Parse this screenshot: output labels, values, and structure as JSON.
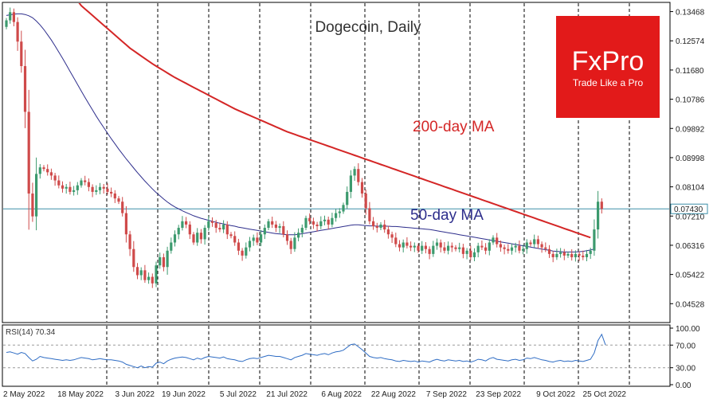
{
  "chart_data": [
    {
      "type": "candlestick",
      "title": "Dogecoin, Daily",
      "price_scale": {
        "ticks": [
          "0.13468",
          "0.12574",
          "0.11680",
          "0.10786",
          "0.09892",
          "0.08998",
          "0.08104",
          "0.07210",
          "0.06316",
          "0.05422",
          "0.04528"
        ],
        "current_price_label": "0.07430",
        "ylim": [
          0.0395,
          0.1375
        ]
      },
      "dates": [
        "2 May 2022",
        "18 May 2022",
        "3 Jun 2022",
        "19 Jun 2022",
        "5 Jul 2022",
        "21 Jul 2022",
        "6 Aug 2022",
        "22 Aug 2022",
        "7 Sep 2022",
        "23 Sep 2022",
        "9 Oct 2022",
        "25 Oct 2022"
      ],
      "close": [
        0.132,
        0.1345,
        0.1315,
        0.1255,
        0.118,
        0.104,
        0.079,
        0.072,
        0.085,
        0.087,
        0.0865,
        0.0855,
        0.0845,
        0.083,
        0.0815,
        0.0805,
        0.081,
        0.0795,
        0.08,
        0.0815,
        0.083,
        0.0825,
        0.081,
        0.0795,
        0.08,
        0.081,
        0.0805,
        0.0795,
        0.079,
        0.0775,
        0.0765,
        0.073,
        0.0665,
        0.062,
        0.0565,
        0.054,
        0.0555,
        0.0525,
        0.0535,
        0.0515,
        0.057,
        0.0595,
        0.0565,
        0.0615,
        0.064,
        0.0665,
        0.0685,
        0.0705,
        0.0695,
        0.0665,
        0.064,
        0.067,
        0.065,
        0.0685,
        0.0705,
        0.07,
        0.0685,
        0.068,
        0.0695,
        0.0665,
        0.066,
        0.064,
        0.0615,
        0.06,
        0.0625,
        0.0645,
        0.0655,
        0.064,
        0.0665,
        0.0685,
        0.0705,
        0.0695,
        0.0685,
        0.069,
        0.0665,
        0.0645,
        0.062,
        0.0655,
        0.067,
        0.0685,
        0.0715,
        0.0705,
        0.0695,
        0.069,
        0.0705,
        0.071,
        0.0695,
        0.0715,
        0.073,
        0.0735,
        0.0755,
        0.0795,
        0.0845,
        0.0865,
        0.0825,
        0.079,
        0.0745,
        0.0705,
        0.069,
        0.0685,
        0.0695,
        0.068,
        0.0665,
        0.0655,
        0.0635,
        0.0625,
        0.064,
        0.063,
        0.0625,
        0.063,
        0.0615,
        0.063,
        0.062,
        0.0605,
        0.063,
        0.064,
        0.0625,
        0.0615,
        0.063,
        0.0625,
        0.062,
        0.0625,
        0.0605,
        0.0615,
        0.0595,
        0.061,
        0.063,
        0.0625,
        0.0615,
        0.064,
        0.0655,
        0.0635,
        0.0625,
        0.062,
        0.0615,
        0.0625,
        0.063,
        0.0615,
        0.062,
        0.064,
        0.0635,
        0.065,
        0.0635,
        0.0625,
        0.062,
        0.0605,
        0.0595,
        0.0605,
        0.061,
        0.06,
        0.0605,
        0.0595,
        0.0605,
        0.06,
        0.0595,
        0.0605,
        0.0615,
        0.068,
        0.0765,
        0.0743
      ],
      "ma200": [
        0.168,
        0.166,
        0.164,
        0.162,
        0.16,
        0.158,
        0.156,
        0.154,
        0.1525,
        0.151,
        0.1495,
        0.148,
        0.1465,
        0.145,
        0.144,
        0.143,
        0.1415,
        0.14,
        0.139,
        0.138,
        0.1365,
        0.1355,
        0.1345,
        0.1335,
        0.1325,
        0.1315,
        0.1305,
        0.1295,
        0.1285,
        0.1275,
        0.1265,
        0.1255,
        0.1245,
        0.1235,
        0.1227,
        0.1219,
        0.1211,
        0.1203,
        0.1195,
        0.1187,
        0.118,
        0.1173,
        0.1166,
        0.1159,
        0.1152,
        0.1145,
        0.1139,
        0.1133,
        0.1127,
        0.1121,
        0.1115,
        0.1109,
        0.1103,
        0.1097,
        0.1091,
        0.1085,
        0.1079,
        0.1073,
        0.1067,
        0.1061,
        0.1055,
        0.1049,
        0.1044,
        0.1039,
        0.1034,
        0.1029,
        0.1024,
        0.1019,
        0.1014,
        0.1009,
        0.1004,
        0.0999,
        0.0994,
        0.0989,
        0.0984,
        0.0979,
        0.0975,
        0.0971,
        0.0967,
        0.0963,
        0.0959,
        0.0955,
        0.0951,
        0.0947,
        0.0943,
        0.0939,
        0.0935,
        0.0931,
        0.0927,
        0.0923,
        0.0919,
        0.0915,
        0.0911,
        0.0907,
        0.0903,
        0.0899,
        0.0895,
        0.0891,
        0.0887,
        0.0883,
        0.0879,
        0.0875,
        0.0871,
        0.0867,
        0.0863,
        0.0859,
        0.0855,
        0.0851,
        0.0847,
        0.0843,
        0.0839,
        0.0835,
        0.0831,
        0.0827,
        0.0823,
        0.0819,
        0.0815,
        0.0811,
        0.0807,
        0.0803,
        0.0799,
        0.0795,
        0.0791,
        0.0787,
        0.0783,
        0.0779,
        0.0775,
        0.0771,
        0.0767,
        0.0763,
        0.0759,
        0.0755,
        0.0751,
        0.0747,
        0.0743,
        0.0739,
        0.0735,
        0.0731,
        0.0727,
        0.0723,
        0.0719,
        0.0715,
        0.0711,
        0.0707,
        0.0703,
        0.0699,
        0.0695,
        0.0691,
        0.0687,
        0.0683,
        0.0679,
        0.0675,
        0.0671,
        0.0667,
        0.0663,
        0.0659,
        0.0655
      ],
      "ma50": [
        0.1335,
        0.1337,
        0.1339,
        0.134,
        0.134,
        0.1338,
        0.1334,
        0.1328,
        0.1318,
        0.1306,
        0.1292,
        0.1276,
        0.126,
        0.1242,
        0.1223,
        0.1204,
        0.1184,
        0.1164,
        0.1144,
        0.1124,
        0.1104,
        0.1084,
        0.1065,
        0.1046,
        0.1027,
        0.1009,
        0.0992,
        0.0975,
        0.0958,
        0.0942,
        0.0926,
        0.0911,
        0.0896,
        0.0882,
        0.0868,
        0.0854,
        0.0841,
        0.0828,
        0.0816,
        0.0804,
        0.0793,
        0.0783,
        0.0773,
        0.0764,
        0.0756,
        0.0749,
        0.0743,
        0.0737,
        0.0732,
        0.0727,
        0.0722,
        0.0718,
        0.0714,
        0.0711,
        0.0708,
        0.0705,
        0.0702,
        0.0699,
        0.0697,
        0.0694,
        0.0692,
        0.069,
        0.0687,
        0.0685,
        0.0683,
        0.0681,
        0.0679,
        0.0677,
        0.0675,
        0.0673,
        0.0671,
        0.0669,
        0.0667,
        0.0666,
        0.0665,
        0.0664,
        0.0664,
        0.0664,
        0.0665,
        0.0667,
        0.0669,
        0.0671,
        0.0673,
        0.0675,
        0.0677,
        0.0679,
        0.0681,
        0.0683,
        0.0685,
        0.0687,
        0.0689,
        0.0691,
        0.0693,
        0.0694,
        0.0694,
        0.0693,
        0.0692,
        0.0691,
        0.0691,
        0.069,
        0.069,
        0.069,
        0.069,
        0.0689,
        0.0689,
        0.0688,
        0.0687,
        0.0686,
        0.0685,
        0.0684,
        0.0683,
        0.0682,
        0.0681,
        0.068,
        0.0678,
        0.0676,
        0.0674,
        0.0672,
        0.067,
        0.0668,
        0.0666,
        0.0664,
        0.0662,
        0.066,
        0.0658,
        0.0656,
        0.0654,
        0.0652,
        0.065,
        0.0648,
        0.0646,
        0.0644,
        0.0642,
        0.064,
        0.0638,
        0.0636,
        0.0634,
        0.0632,
        0.063,
        0.0628,
        0.0626,
        0.0624,
        0.0622,
        0.062,
        0.0618,
        0.0616,
        0.0614,
        0.0613,
        0.0612,
        0.0611,
        0.0611,
        0.0611,
        0.0611,
        0.0612,
        0.0613,
        0.0615,
        0.0617,
        0.062
      ],
      "annotations": [
        "200-day MA",
        "50-day MA"
      ],
      "colors": {
        "bull": "#3c9a6e",
        "bear": "#cf4a4a",
        "ma200": "#d42626",
        "ma50": "#2e2e8c",
        "hline": "#3d8fa8",
        "brand": "#e21a1a"
      }
    },
    {
      "type": "line",
      "title": "RSI(14) 70.34",
      "ticks": [
        "100.00",
        "70.00",
        "30.00",
        "0.00"
      ],
      "ylim": [
        0,
        100
      ],
      "levels": [
        70,
        30
      ],
      "values": [
        57,
        58,
        56,
        54,
        57,
        55,
        48,
        42,
        45,
        50,
        48,
        47,
        46,
        45,
        44,
        43,
        44,
        43,
        44,
        46,
        48,
        47,
        46,
        44,
        45,
        46,
        45,
        44,
        44,
        43,
        42,
        40,
        36,
        34,
        32,
        30,
        33,
        30,
        32,
        31,
        38,
        40,
        37,
        42,
        45,
        47,
        48,
        49,
        48,
        46,
        44,
        47,
        45,
        48,
        50,
        49,
        48,
        47,
        49,
        46,
        45,
        44,
        42,
        41,
        44,
        46,
        47,
        46,
        48,
        50,
        52,
        51,
        50,
        50,
        48,
        46,
        44,
        48,
        50,
        52,
        55,
        54,
        53,
        52,
        54,
        55,
        53,
        56,
        58,
        59,
        61,
        66,
        71,
        72,
        67,
        62,
        56,
        50,
        48,
        47,
        48,
        46,
        45,
        44,
        42,
        41,
        43,
        42,
        41,
        42,
        40,
        42,
        41,
        40,
        43,
        45,
        43,
        42,
        44,
        43,
        42,
        43,
        41,
        42,
        40,
        42,
        45,
        44,
        42,
        46,
        48,
        45,
        44,
        43,
        42,
        44,
        45,
        43,
        44,
        47,
        46,
        48,
        46,
        44,
        43,
        41,
        40,
        42,
        43,
        41,
        42,
        41,
        43,
        42,
        41,
        43,
        45,
        56,
        78,
        89,
        70.34
      ],
      "color": "#2e6cc4"
    }
  ],
  "brand": {
    "name": "FxPro",
    "tagline": "Trade Like a Pro"
  }
}
